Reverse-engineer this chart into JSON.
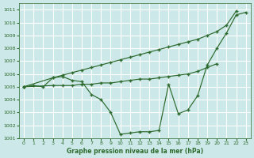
{
  "title": "Graphe pression niveau de la mer (hPa)",
  "bg_color": "#cce8e8",
  "grid_color": "#ffffff",
  "line_color": "#2d6a2d",
  "xlim": [
    -0.5,
    23.5
  ],
  "ylim": [
    1001,
    1011.5
  ],
  "xticks": [
    0,
    1,
    2,
    3,
    4,
    5,
    6,
    7,
    8,
    9,
    10,
    11,
    12,
    13,
    14,
    15,
    16,
    17,
    18,
    19,
    20,
    21,
    22,
    23
  ],
  "yticks": [
    1001,
    1002,
    1003,
    1004,
    1005,
    1006,
    1007,
    1008,
    1009,
    1010,
    1011
  ],
  "series_dip_x": [
    0,
    1,
    2,
    3,
    4,
    5,
    6,
    7,
    8,
    9,
    10,
    11,
    12,
    13,
    14,
    15,
    16,
    17,
    18,
    19,
    20,
    21,
    22,
    23
  ],
  "series_dip_y": [
    1005.0,
    1005.1,
    1005.0,
    1005.7,
    1005.8,
    1005.5,
    1005.4,
    1004.4,
    1004.0,
    1003.0,
    1001.3,
    1001.4,
    1001.5,
    1001.5,
    1001.6,
    1005.2,
    1002.9,
    1003.2,
    1004.3,
    1006.7,
    1008.0,
    1009.2,
    1010.6,
    1010.8
  ],
  "series_diag_x": [
    0,
    3,
    4,
    5,
    6,
    7,
    8,
    9,
    10,
    11,
    12,
    13,
    14,
    15,
    16,
    17,
    18,
    19,
    20,
    21,
    22
  ],
  "series_diag_y": [
    1005.0,
    1005.7,
    1005.9,
    1006.1,
    1006.3,
    1006.5,
    1006.7,
    1006.9,
    1007.1,
    1007.3,
    1007.5,
    1007.7,
    1007.9,
    1008.1,
    1008.3,
    1008.5,
    1008.7,
    1009.0,
    1009.3,
    1009.8,
    1010.9
  ],
  "series_flat_x": [
    0,
    3,
    4,
    5,
    6,
    7,
    8,
    9,
    10,
    11,
    12,
    13,
    14,
    15,
    16,
    17,
    18,
    19,
    20
  ],
  "series_flat_y": [
    1005.0,
    1005.1,
    1005.1,
    1005.1,
    1005.2,
    1005.2,
    1005.3,
    1005.3,
    1005.4,
    1005.5,
    1005.6,
    1005.6,
    1005.7,
    1005.8,
    1005.9,
    1006.0,
    1006.2,
    1006.5,
    1006.8
  ]
}
